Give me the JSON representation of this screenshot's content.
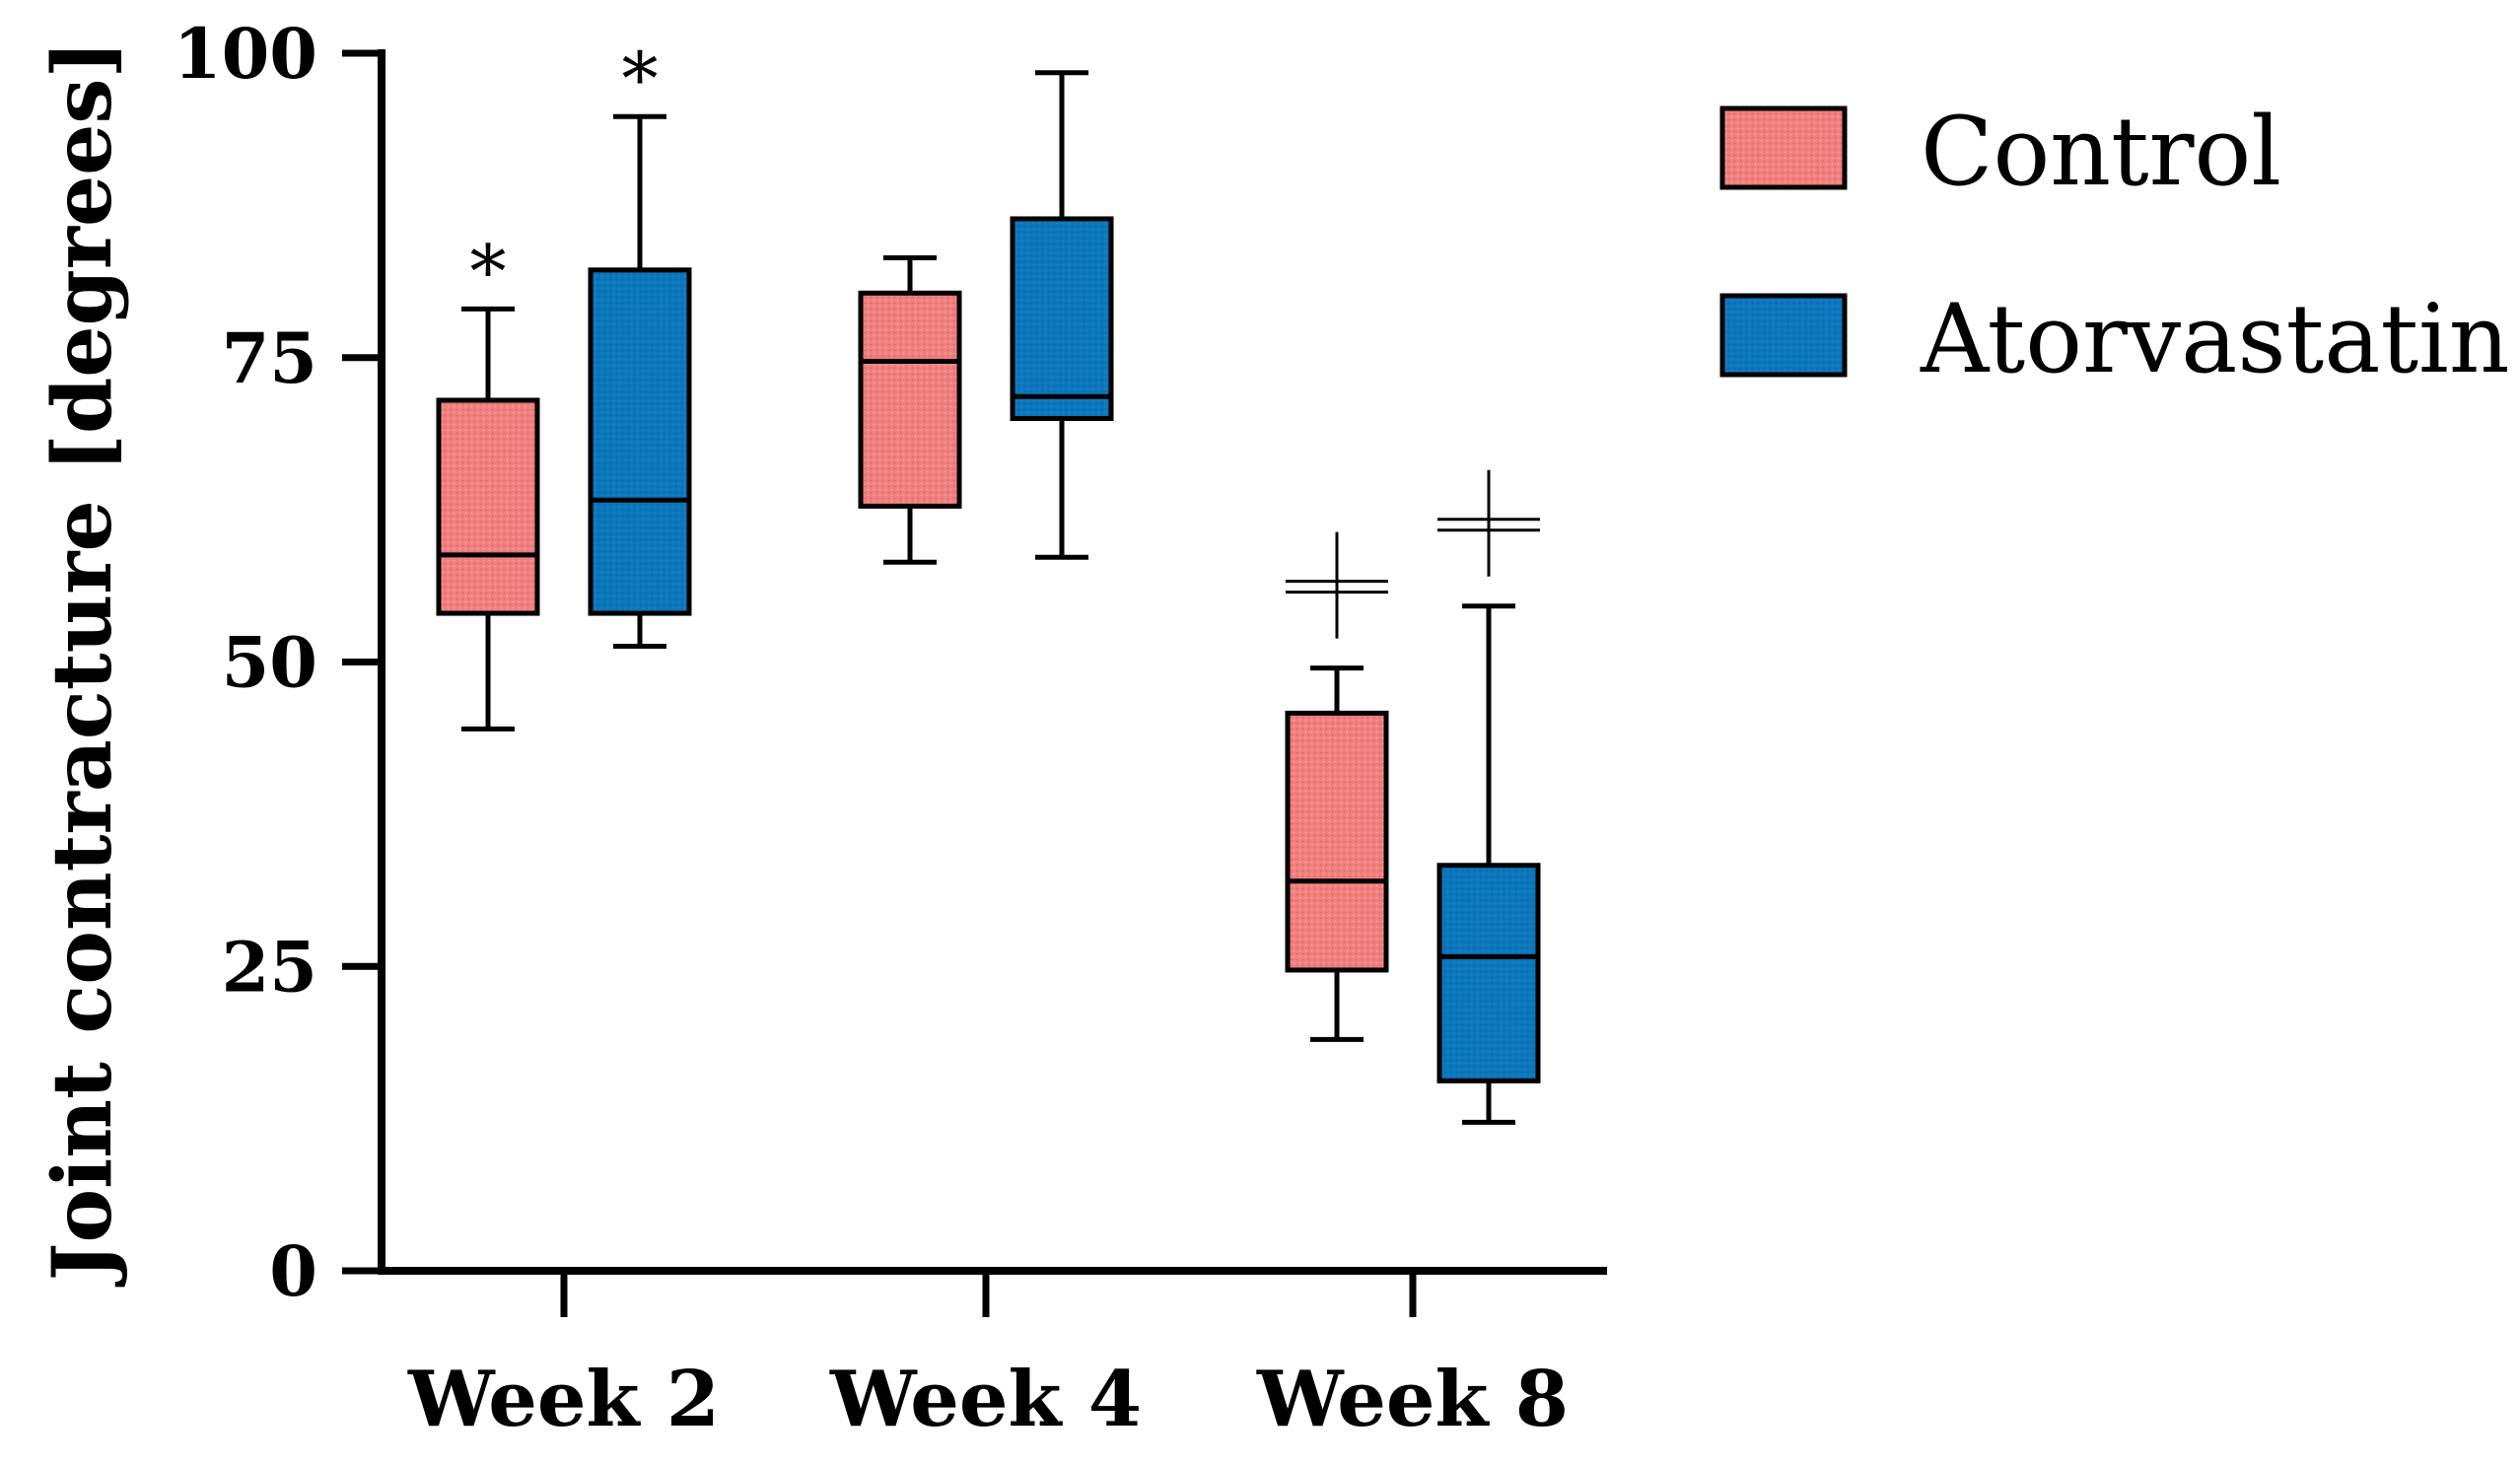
{
  "chart_data": {
    "type": "box",
    "title": "",
    "xlabel": "",
    "ylabel": "Joint contracture [degrees]",
    "ylim": [
      0,
      100
    ],
    "yticks": [
      "0",
      "25",
      "50",
      "75",
      "100"
    ],
    "categories": [
      "Week 2",
      "Week 4",
      "Week 8"
    ],
    "legend_position": "top-right",
    "series": [
      {
        "name": "Control",
        "color": "#f08080",
        "boxes": [
          {
            "min": 44.5,
            "q1": 54,
            "median": 58.8,
            "q3": 71.5,
            "max": 79,
            "marker": "*"
          },
          {
            "min": 58.2,
            "q1": 62.8,
            "median": 74.7,
            "q3": 80.3,
            "max": 83.2,
            "marker": ""
          },
          {
            "min": 19,
            "q1": 24.7,
            "median": 32,
            "q3": 45.8,
            "max": 49.5,
            "marker": "‡"
          }
        ]
      },
      {
        "name": "Atorvastatin",
        "color": "#0d77bd",
        "boxes": [
          {
            "min": 51.3,
            "q1": 54,
            "median": 63.3,
            "q3": 82.2,
            "max": 94.8,
            "marker": "*"
          },
          {
            "min": 58.6,
            "q1": 70,
            "median": 71.8,
            "q3": 86.4,
            "max": 98.4,
            "marker": ""
          },
          {
            "min": 12.2,
            "q1": 15.6,
            "median": 25.8,
            "q3": 33.3,
            "max": 54.6,
            "marker": "‡"
          }
        ]
      }
    ]
  }
}
